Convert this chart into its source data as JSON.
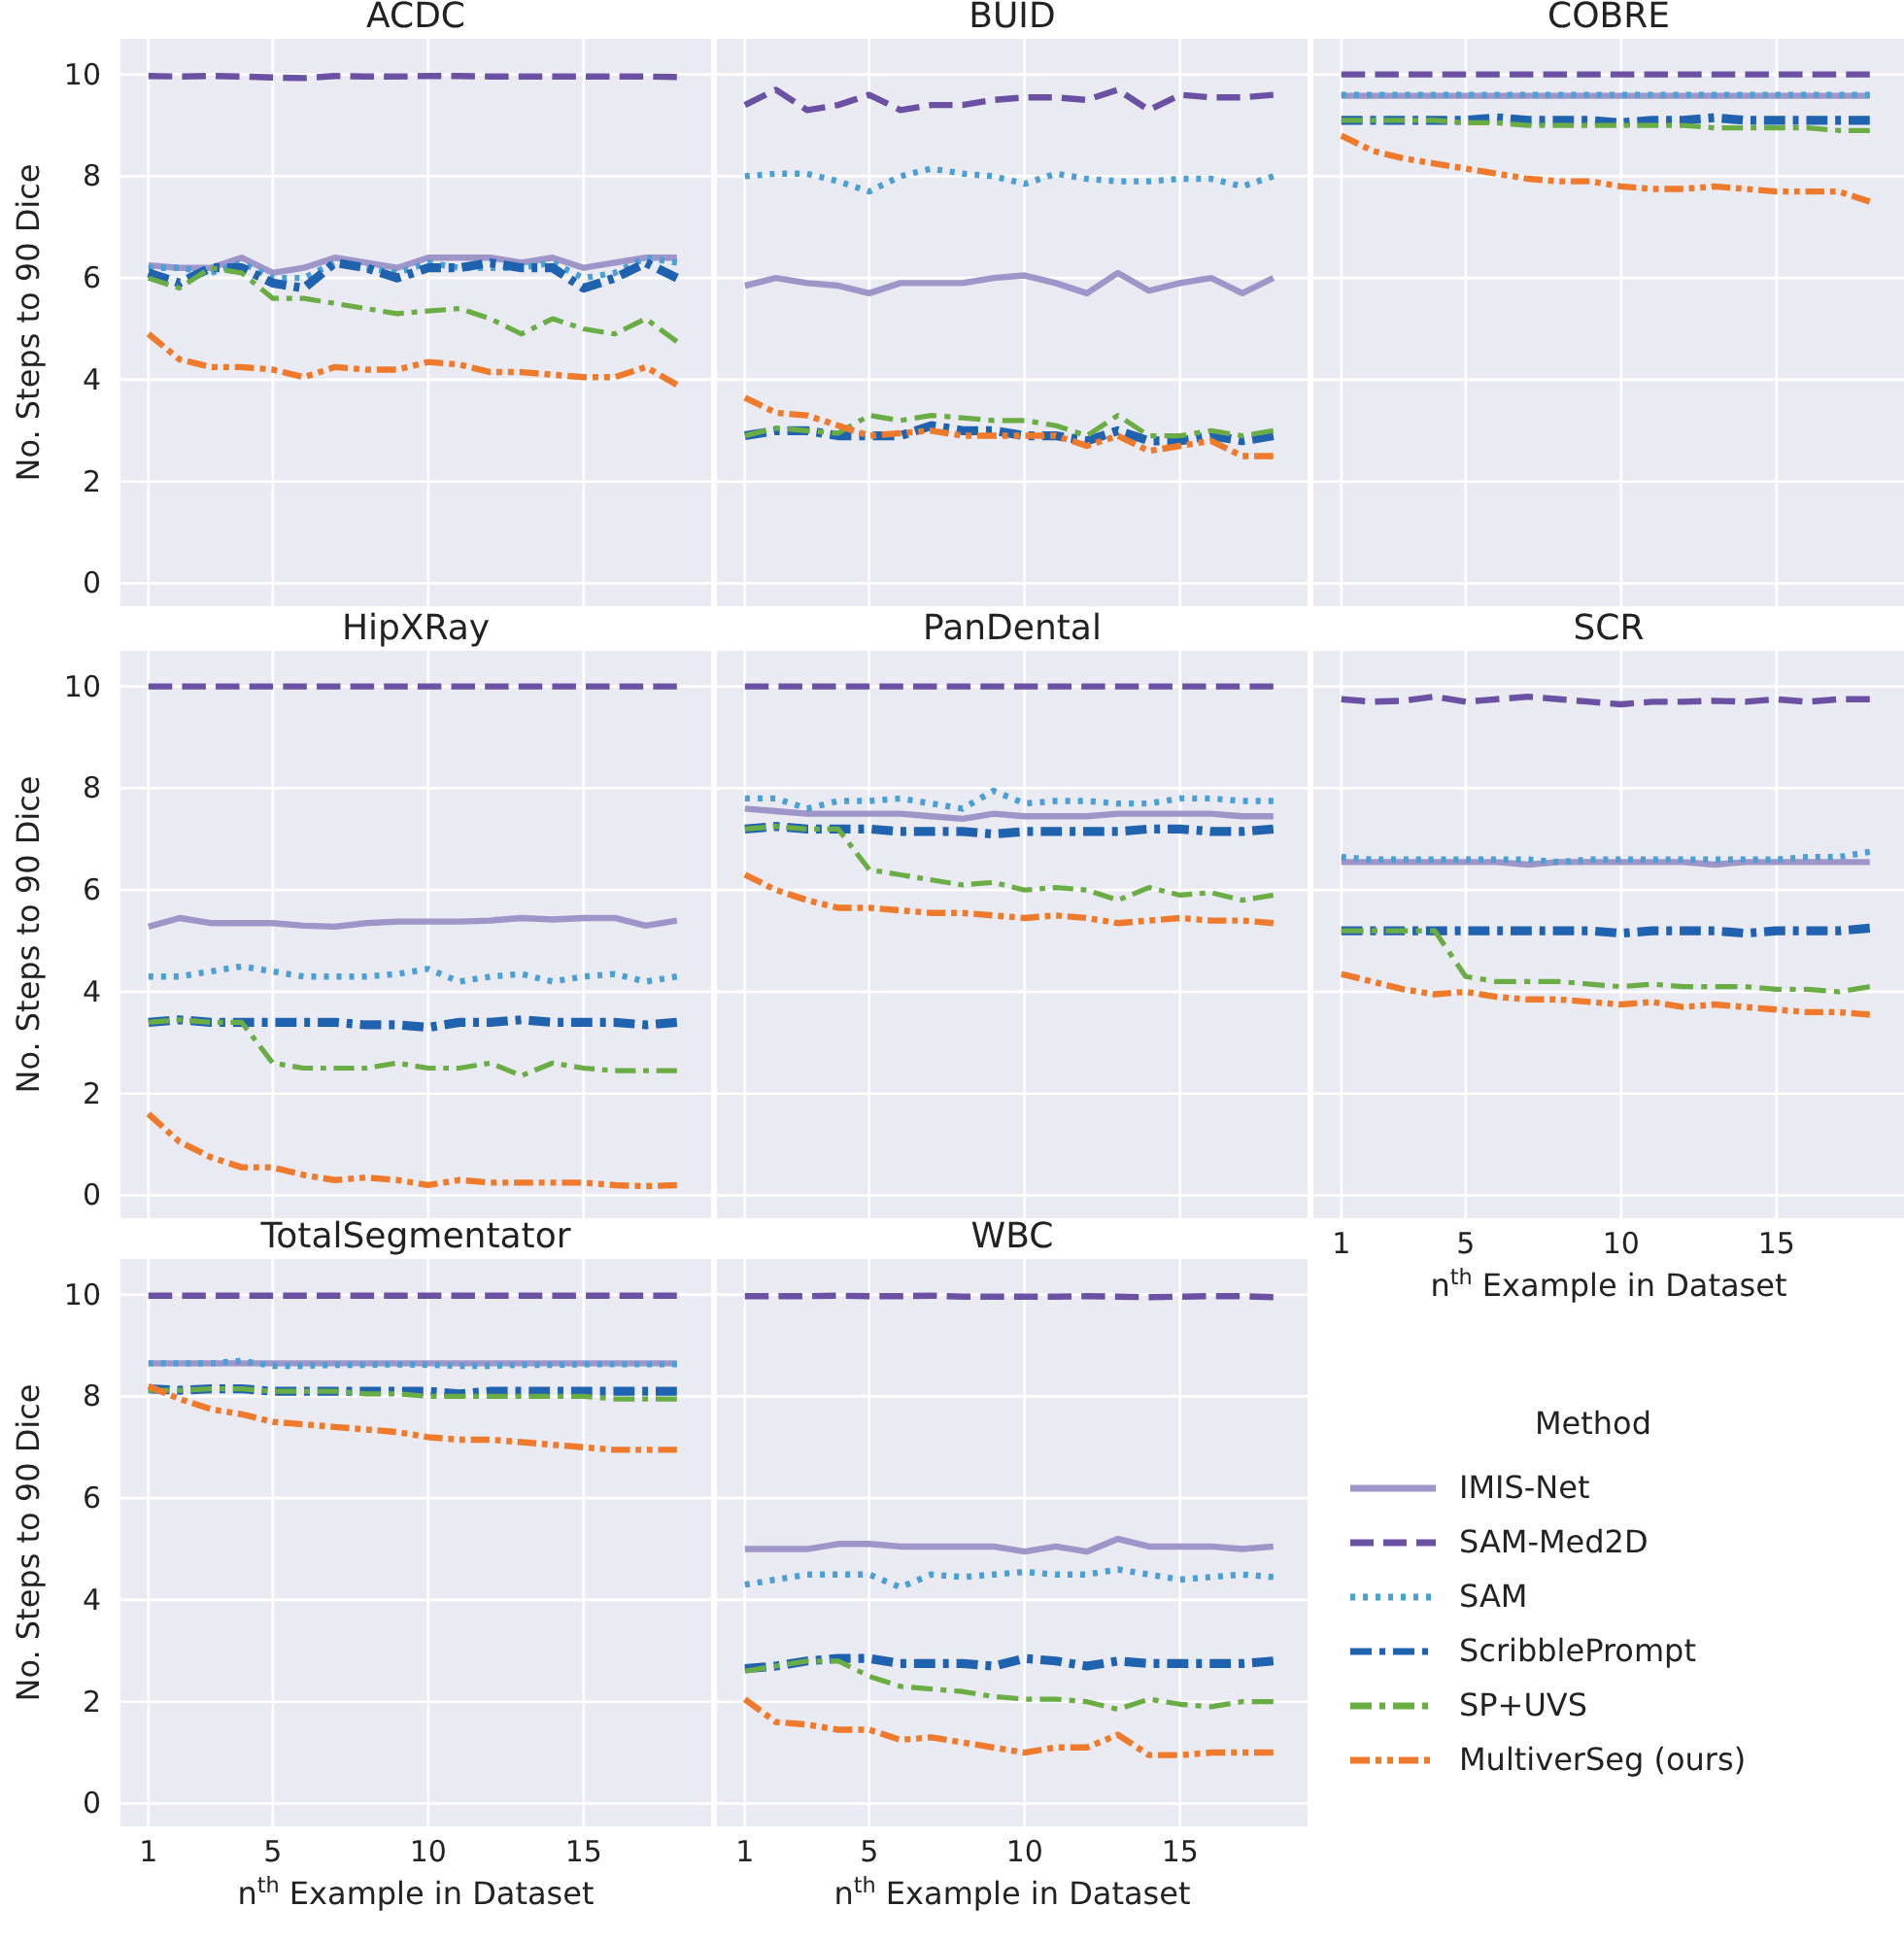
{
  "chart_data": [
    {
      "type": "line",
      "title": "ACDC",
      "ylabel": "No. Steps to 90 Dice",
      "x": [
        1,
        2,
        3,
        4,
        5,
        6,
        7,
        8,
        9,
        10,
        11,
        12,
        13,
        14,
        15,
        16,
        17,
        18
      ],
      "xlim": [
        0.1,
        19.1
      ],
      "xticks": [
        1,
        5,
        10,
        15
      ],
      "ylim": [
        -0.45,
        10.7
      ],
      "yticks": [
        0,
        2,
        4,
        6,
        8,
        10
      ],
      "grid": true,
      "tick_labels": "y",
      "legend": false,
      "series": [
        {
          "color": "#9e95c8",
          "line_style": "solid",
          "values": [
            6.25,
            6.2,
            6.2,
            6.4,
            6.1,
            6.2,
            6.4,
            6.3,
            6.2,
            6.4,
            6.4,
            6.4,
            6.3,
            6.4,
            6.2,
            6.3,
            6.4,
            6.4
          ]
        },
        {
          "color": "#6a51a3",
          "line_style": "dashed",
          "values": [
            9.97,
            9.96,
            9.97,
            9.96,
            9.94,
            9.93,
            9.97,
            9.96,
            9.96,
            9.97,
            9.97,
            9.96,
            9.96,
            9.96,
            9.96,
            9.96,
            9.96,
            9.95
          ]
        },
        {
          "color": "#4a9fd4",
          "line_style": "dotted",
          "values": [
            6.2,
            6.2,
            6.1,
            6.3,
            6.0,
            6.0,
            6.3,
            6.2,
            6.1,
            6.3,
            6.2,
            6.2,
            6.2,
            6.3,
            6.0,
            6.1,
            6.4,
            6.3
          ]
        },
        {
          "color": "#1f63b0",
          "line_style": "dashdot",
          "values": [
            6.1,
            5.9,
            6.2,
            6.2,
            5.9,
            5.8,
            6.3,
            6.2,
            6.0,
            6.2,
            6.2,
            6.3,
            6.2,
            6.2,
            5.8,
            6.0,
            6.3,
            6.0
          ]
        },
        {
          "color": "#6aad45",
          "line_style": "dashdot",
          "values": [
            6.0,
            5.8,
            6.2,
            6.1,
            5.6,
            5.6,
            5.5,
            5.4,
            5.3,
            5.35,
            5.4,
            5.2,
            4.9,
            5.2,
            5.0,
            4.9,
            5.2,
            4.75
          ]
        },
        {
          "color": "#f07a2c",
          "line_style": "dashdotdot",
          "values": [
            4.9,
            4.4,
            4.25,
            4.25,
            4.2,
            4.05,
            4.25,
            4.2,
            4.2,
            4.35,
            4.3,
            4.15,
            4.15,
            4.1,
            4.05,
            4.05,
            4.25,
            3.9
          ]
        }
      ]
    },
    {
      "type": "line",
      "title": "BUID",
      "x": [
        1,
        2,
        3,
        4,
        5,
        6,
        7,
        8,
        9,
        10,
        11,
        12,
        13,
        14,
        15,
        16,
        17,
        18
      ],
      "xlim": [
        0.1,
        19.1
      ],
      "xticks": [
        1,
        5,
        10,
        15
      ],
      "ylim": [
        -0.45,
        10.7
      ],
      "yticks": [
        0,
        2,
        4,
        6,
        8,
        10
      ],
      "grid": true,
      "tick_labels": false,
      "legend": false,
      "series": [
        {
          "color": "#9e95c8",
          "line_style": "solid",
          "values": [
            5.85,
            6.0,
            5.9,
            5.85,
            5.7,
            5.9,
            5.9,
            5.9,
            6.0,
            6.05,
            5.9,
            5.7,
            6.1,
            5.75,
            5.9,
            6.0,
            5.7,
            6.0
          ]
        },
        {
          "color": "#6a51a3",
          "line_style": "dashed",
          "values": [
            9.4,
            9.7,
            9.3,
            9.4,
            9.6,
            9.3,
            9.4,
            9.4,
            9.5,
            9.55,
            9.55,
            9.5,
            9.7,
            9.3,
            9.6,
            9.55,
            9.55,
            9.6
          ]
        },
        {
          "color": "#4a9fd4",
          "line_style": "dotted",
          "values": [
            8.0,
            8.05,
            8.05,
            7.9,
            7.7,
            8.0,
            8.15,
            8.05,
            8.0,
            7.85,
            8.05,
            7.95,
            7.9,
            7.9,
            7.95,
            7.95,
            7.8,
            8.0
          ]
        },
        {
          "color": "#1f63b0",
          "line_style": "dashdot",
          "values": [
            2.9,
            3.0,
            3.0,
            2.9,
            2.9,
            2.9,
            3.1,
            3.0,
            3.0,
            2.9,
            2.9,
            2.8,
            3.0,
            2.8,
            2.8,
            2.9,
            2.8,
            2.9
          ]
        },
        {
          "color": "#6aad45",
          "line_style": "dashdot",
          "values": [
            2.9,
            3.05,
            3.0,
            2.95,
            3.3,
            3.2,
            3.3,
            3.25,
            3.2,
            3.2,
            3.1,
            2.9,
            3.3,
            2.9,
            2.9,
            3.0,
            2.9,
            3.0
          ]
        },
        {
          "color": "#f07a2c",
          "line_style": "dashdotdot",
          "values": [
            3.65,
            3.35,
            3.3,
            3.1,
            2.9,
            2.95,
            3.0,
            2.9,
            2.9,
            2.9,
            2.9,
            2.7,
            2.9,
            2.6,
            2.7,
            2.8,
            2.5,
            2.5
          ]
        }
      ]
    },
    {
      "type": "line",
      "title": "COBRE",
      "x": [
        1,
        2,
        3,
        4,
        5,
        6,
        7,
        8,
        9,
        10,
        11,
        12,
        13,
        14,
        15,
        16,
        17,
        18
      ],
      "xlim": [
        0.1,
        19.1
      ],
      "xticks": [
        1,
        5,
        10,
        15
      ],
      "ylim": [
        -0.45,
        10.7
      ],
      "yticks": [
        0,
        2,
        4,
        6,
        8,
        10
      ],
      "grid": true,
      "tick_labels": false,
      "legend": false,
      "series": [
        {
          "color": "#9e95c8",
          "line_style": "solid",
          "values": [
            9.58,
            9.58,
            9.58,
            9.58,
            9.58,
            9.58,
            9.58,
            9.58,
            9.58,
            9.58,
            9.58,
            9.58,
            9.58,
            9.58,
            9.58,
            9.58,
            9.58,
            9.58
          ]
        },
        {
          "color": "#6a51a3",
          "line_style": "dashed",
          "values": [
            10.0,
            10.0,
            10.0,
            10.0,
            10.0,
            10.0,
            10.0,
            10.0,
            10.0,
            10.0,
            10.0,
            10.0,
            10.0,
            10.0,
            10.0,
            10.0,
            10.0,
            10.0
          ]
        },
        {
          "color": "#4a9fd4",
          "line_style": "dotted",
          "values": [
            9.6,
            9.6,
            9.6,
            9.6,
            9.6,
            9.6,
            9.6,
            9.6,
            9.6,
            9.6,
            9.6,
            9.6,
            9.6,
            9.6,
            9.6,
            9.6,
            9.6,
            9.6
          ]
        },
        {
          "color": "#1f63b0",
          "line_style": "dashdot",
          "values": [
            9.1,
            9.1,
            9.1,
            9.1,
            9.1,
            9.15,
            9.1,
            9.1,
            9.1,
            9.05,
            9.1,
            9.1,
            9.15,
            9.1,
            9.1,
            9.1,
            9.1,
            9.1
          ]
        },
        {
          "color": "#6aad45",
          "line_style": "dashdot",
          "values": [
            9.1,
            9.1,
            9.1,
            9.1,
            9.05,
            9.05,
            9.0,
            9.0,
            9.0,
            9.0,
            9.0,
            9.0,
            8.95,
            8.95,
            8.95,
            8.95,
            8.9,
            8.9
          ]
        },
        {
          "color": "#f07a2c",
          "line_style": "dashdotdot",
          "values": [
            8.8,
            8.5,
            8.35,
            8.25,
            8.15,
            8.05,
            7.95,
            7.9,
            7.9,
            7.8,
            7.75,
            7.75,
            7.8,
            7.75,
            7.7,
            7.7,
            7.7,
            7.5
          ]
        }
      ]
    },
    {
      "type": "line",
      "title": "HipXRay",
      "ylabel": "No. Steps to 90 Dice",
      "x": [
        1,
        2,
        3,
        4,
        5,
        6,
        7,
        8,
        9,
        10,
        11,
        12,
        13,
        14,
        15,
        16,
        17,
        18
      ],
      "xlim": [
        0.1,
        19.1
      ],
      "xticks": [
        1,
        5,
        10,
        15
      ],
      "ylim": [
        -0.45,
        10.7
      ],
      "yticks": [
        0,
        2,
        4,
        6,
        8,
        10
      ],
      "grid": true,
      "tick_labels": "y",
      "legend": false,
      "series": [
        {
          "color": "#9e95c8",
          "line_style": "solid",
          "values": [
            5.28,
            5.45,
            5.35,
            5.35,
            5.35,
            5.3,
            5.28,
            5.35,
            5.38,
            5.38,
            5.38,
            5.4,
            5.45,
            5.42,
            5.45,
            5.45,
            5.3,
            5.4
          ]
        },
        {
          "color": "#6a51a3",
          "line_style": "dashed",
          "values": [
            10.0,
            10.0,
            10.0,
            10.0,
            10.0,
            10.0,
            10.0,
            10.0,
            10.0,
            10.0,
            10.0,
            10.0,
            10.0,
            10.0,
            10.0,
            10.0,
            10.0,
            10.0
          ]
        },
        {
          "color": "#4a9fd4",
          "line_style": "dotted",
          "values": [
            4.3,
            4.3,
            4.4,
            4.5,
            4.4,
            4.3,
            4.3,
            4.3,
            4.35,
            4.45,
            4.2,
            4.3,
            4.35,
            4.2,
            4.3,
            4.35,
            4.2,
            4.3
          ]
        },
        {
          "color": "#1f63b0",
          "line_style": "dashdot",
          "values": [
            3.4,
            3.45,
            3.4,
            3.4,
            3.4,
            3.4,
            3.4,
            3.35,
            3.35,
            3.3,
            3.4,
            3.4,
            3.45,
            3.4,
            3.4,
            3.4,
            3.35,
            3.4
          ]
        },
        {
          "color": "#6aad45",
          "line_style": "dashdot",
          "values": [
            3.4,
            3.45,
            3.4,
            3.4,
            2.6,
            2.5,
            2.5,
            2.5,
            2.6,
            2.5,
            2.5,
            2.6,
            2.35,
            2.6,
            2.5,
            2.45,
            2.45,
            2.45
          ]
        },
        {
          "color": "#f07a2c",
          "line_style": "dashdotdot",
          "values": [
            1.6,
            1.05,
            0.75,
            0.55,
            0.55,
            0.4,
            0.3,
            0.35,
            0.3,
            0.2,
            0.3,
            0.25,
            0.25,
            0.25,
            0.25,
            0.2,
            0.18,
            0.2
          ]
        }
      ]
    },
    {
      "type": "line",
      "title": "PanDental",
      "x": [
        1,
        2,
        3,
        4,
        5,
        6,
        7,
        8,
        9,
        10,
        11,
        12,
        13,
        14,
        15,
        16,
        17,
        18
      ],
      "xlim": [
        0.1,
        19.1
      ],
      "xticks": [
        1,
        5,
        10,
        15
      ],
      "ylim": [
        -0.45,
        10.7
      ],
      "yticks": [
        0,
        2,
        4,
        6,
        8,
        10
      ],
      "grid": true,
      "tick_labels": false,
      "legend": false,
      "series": [
        {
          "color": "#9e95c8",
          "line_style": "solid",
          "values": [
            7.6,
            7.55,
            7.5,
            7.5,
            7.5,
            7.5,
            7.45,
            7.4,
            7.5,
            7.45,
            7.45,
            7.45,
            7.5,
            7.5,
            7.5,
            7.5,
            7.45,
            7.45
          ]
        },
        {
          "color": "#6a51a3",
          "line_style": "dashed",
          "values": [
            10.0,
            10.0,
            10.0,
            10.0,
            10.0,
            10.0,
            10.0,
            10.0,
            10.0,
            10.0,
            10.0,
            10.0,
            10.0,
            10.0,
            10.0,
            10.0,
            10.0,
            10.0
          ]
        },
        {
          "color": "#4a9fd4",
          "line_style": "dotted",
          "values": [
            7.8,
            7.8,
            7.6,
            7.75,
            7.75,
            7.8,
            7.7,
            7.6,
            7.95,
            7.7,
            7.75,
            7.75,
            7.7,
            7.7,
            7.8,
            7.8,
            7.75,
            7.75
          ]
        },
        {
          "color": "#1f63b0",
          "line_style": "dashdot",
          "values": [
            7.2,
            7.25,
            7.2,
            7.2,
            7.2,
            7.15,
            7.15,
            7.15,
            7.1,
            7.15,
            7.15,
            7.15,
            7.15,
            7.2,
            7.2,
            7.15,
            7.15,
            7.2
          ]
        },
        {
          "color": "#6aad45",
          "line_style": "dashdot",
          "values": [
            7.2,
            7.25,
            7.2,
            7.2,
            6.4,
            6.3,
            6.2,
            6.1,
            6.15,
            6.0,
            6.05,
            6.0,
            5.8,
            6.05,
            5.9,
            5.95,
            5.8,
            5.9
          ]
        },
        {
          "color": "#f07a2c",
          "line_style": "dashdotdot",
          "values": [
            6.3,
            6.0,
            5.8,
            5.65,
            5.65,
            5.6,
            5.55,
            5.55,
            5.5,
            5.45,
            5.5,
            5.45,
            5.35,
            5.4,
            5.45,
            5.4,
            5.4,
            5.35
          ]
        }
      ]
    },
    {
      "type": "line",
      "title": "SCR",
      "xlabel": "n$^{th}$ Example in Dataset",
      "x": [
        1,
        2,
        3,
        4,
        5,
        6,
        7,
        8,
        9,
        10,
        11,
        12,
        13,
        14,
        15,
        16,
        17,
        18
      ],
      "xlim": [
        0.1,
        19.1
      ],
      "xticks": [
        1,
        5,
        10,
        15
      ],
      "ylim": [
        -0.45,
        10.7
      ],
      "yticks": [
        0,
        2,
        4,
        6,
        8,
        10
      ],
      "grid": true,
      "tick_labels": "x",
      "legend": false,
      "series": [
        {
          "color": "#9e95c8",
          "line_style": "solid",
          "values": [
            6.55,
            6.55,
            6.55,
            6.55,
            6.55,
            6.55,
            6.5,
            6.55,
            6.55,
            6.55,
            6.55,
            6.55,
            6.5,
            6.55,
            6.55,
            6.55,
            6.55,
            6.55
          ]
        },
        {
          "color": "#6a51a3",
          "line_style": "dashed",
          "values": [
            9.75,
            9.7,
            9.72,
            9.8,
            9.7,
            9.75,
            9.8,
            9.75,
            9.7,
            9.65,
            9.7,
            9.7,
            9.72,
            9.7,
            9.75,
            9.7,
            9.75,
            9.75
          ]
        },
        {
          "color": "#4a9fd4",
          "line_style": "dotted",
          "values": [
            6.65,
            6.6,
            6.6,
            6.6,
            6.6,
            6.6,
            6.6,
            6.55,
            6.6,
            6.6,
            6.6,
            6.6,
            6.6,
            6.6,
            6.6,
            6.65,
            6.65,
            6.75
          ]
        },
        {
          "color": "#1f63b0",
          "line_style": "dashdot",
          "values": [
            5.2,
            5.2,
            5.2,
            5.2,
            5.2,
            5.2,
            5.2,
            5.2,
            5.2,
            5.15,
            5.2,
            5.2,
            5.2,
            5.15,
            5.2,
            5.2,
            5.2,
            5.25
          ]
        },
        {
          "color": "#6aad45",
          "line_style": "dashdot",
          "values": [
            5.2,
            5.2,
            5.2,
            5.2,
            4.3,
            4.2,
            4.2,
            4.2,
            4.15,
            4.1,
            4.15,
            4.1,
            4.1,
            4.1,
            4.05,
            4.05,
            4.0,
            4.1
          ]
        },
        {
          "color": "#f07a2c",
          "line_style": "dashdotdot",
          "values": [
            4.35,
            4.2,
            4.05,
            3.95,
            4.0,
            3.9,
            3.85,
            3.85,
            3.8,
            3.75,
            3.8,
            3.7,
            3.75,
            3.7,
            3.65,
            3.6,
            3.6,
            3.55
          ]
        }
      ]
    },
    {
      "type": "line",
      "title": "TotalSegmentator",
      "xlabel": "n$^{th}$ Example in Dataset",
      "ylabel": "No. Steps to 90 Dice",
      "x": [
        1,
        2,
        3,
        4,
        5,
        6,
        7,
        8,
        9,
        10,
        11,
        12,
        13,
        14,
        15,
        16,
        17,
        18
      ],
      "xlim": [
        0.1,
        19.1
      ],
      "xticks": [
        1,
        5,
        10,
        15
      ],
      "ylim": [
        -0.45,
        10.7
      ],
      "yticks": [
        0,
        2,
        4,
        6,
        8,
        10
      ],
      "grid": true,
      "legend": false,
      "series": [
        {
          "color": "#9e95c8",
          "line_style": "solid",
          "values": [
            8.65,
            8.65,
            8.65,
            8.65,
            8.65,
            8.65,
            8.65,
            8.65,
            8.65,
            8.65,
            8.65,
            8.65,
            8.65,
            8.65,
            8.65,
            8.65,
            8.65,
            8.65
          ]
        },
        {
          "color": "#6a51a3",
          "line_style": "dashed",
          "values": [
            9.98,
            9.98,
            9.98,
            9.98,
            9.98,
            9.98,
            9.98,
            9.98,
            9.98,
            9.98,
            9.98,
            9.98,
            9.98,
            9.98,
            9.98,
            9.98,
            9.98,
            9.98
          ]
        },
        {
          "color": "#4a9fd4",
          "line_style": "dotted",
          "values": [
            8.65,
            8.65,
            8.65,
            8.7,
            8.6,
            8.6,
            8.62,
            8.62,
            8.63,
            8.62,
            8.6,
            8.6,
            8.62,
            8.62,
            8.63,
            8.63,
            8.63,
            8.63
          ]
        },
        {
          "color": "#1f63b0",
          "line_style": "dashdot",
          "values": [
            8.15,
            8.12,
            8.15,
            8.15,
            8.1,
            8.1,
            8.1,
            8.1,
            8.1,
            8.1,
            8.05,
            8.1,
            8.1,
            8.1,
            8.1,
            8.1,
            8.1,
            8.1
          ]
        },
        {
          "color": "#6aad45",
          "line_style": "dashdot",
          "values": [
            8.12,
            8.12,
            8.15,
            8.15,
            8.1,
            8.1,
            8.1,
            8.05,
            8.05,
            8.0,
            8.0,
            8.0,
            8.0,
            8.0,
            8.0,
            7.95,
            7.95,
            7.95
          ]
        },
        {
          "color": "#f07a2c",
          "line_style": "dashdotdot",
          "values": [
            8.2,
            7.95,
            7.75,
            7.65,
            7.5,
            7.45,
            7.4,
            7.35,
            7.3,
            7.2,
            7.15,
            7.15,
            7.1,
            7.05,
            7.0,
            6.95,
            6.95,
            6.95
          ]
        }
      ]
    },
    {
      "type": "line",
      "title": "WBC",
      "xlabel": "n$^{th}$ Example in Dataset",
      "legend_title": "Method",
      "x": [
        1,
        2,
        3,
        4,
        5,
        6,
        7,
        8,
        9,
        10,
        11,
        12,
        13,
        14,
        15,
        16,
        17,
        18
      ],
      "xlim": [
        0.1,
        19.1
      ],
      "xticks": [
        1,
        5,
        10,
        15
      ],
      "ylim": [
        -0.45,
        10.7
      ],
      "yticks": [
        0,
        2,
        4,
        6,
        8,
        10
      ],
      "grid": true,
      "tick_labels": "x",
      "legend": "right",
      "series": [
        {
          "name": "IMIS-Net",
          "color": "#9e95c8",
          "line_style": "solid",
          "values": [
            5.0,
            5.0,
            5.0,
            5.1,
            5.1,
            5.05,
            5.05,
            5.05,
            5.05,
            4.95,
            5.05,
            4.95,
            5.2,
            5.05,
            5.05,
            5.05,
            5.0,
            5.05
          ]
        },
        {
          "name": "SAM-Med2D",
          "color": "#6a51a3",
          "line_style": "dashed",
          "values": [
            9.97,
            9.97,
            9.97,
            9.98,
            9.97,
            9.97,
            9.98,
            9.96,
            9.96,
            9.96,
            9.96,
            9.97,
            9.96,
            9.95,
            9.96,
            9.97,
            9.97,
            9.95
          ]
        },
        {
          "name": "SAM",
          "color": "#4a9fd4",
          "line_style": "dotted",
          "values": [
            4.3,
            4.4,
            4.5,
            4.5,
            4.5,
            4.25,
            4.5,
            4.45,
            4.5,
            4.55,
            4.5,
            4.5,
            4.6,
            4.5,
            4.4,
            4.45,
            4.5,
            4.45
          ]
        },
        {
          "name": "ScribblePrompt",
          "color": "#1f63b0",
          "line_style": "dashdot",
          "values": [
            2.65,
            2.7,
            2.8,
            2.85,
            2.85,
            2.75,
            2.75,
            2.75,
            2.7,
            2.85,
            2.8,
            2.7,
            2.8,
            2.75,
            2.75,
            2.75,
            2.75,
            2.8
          ]
        },
        {
          "name": "SP+UVS",
          "color": "#6aad45",
          "line_style": "dashdot",
          "values": [
            2.6,
            2.7,
            2.8,
            2.8,
            2.5,
            2.3,
            2.25,
            2.2,
            2.1,
            2.05,
            2.05,
            2.0,
            1.85,
            2.05,
            1.95,
            1.9,
            2.0,
            2.0
          ]
        },
        {
          "name": "MultiverSeg (ours)",
          "color": "#f07a2c",
          "line_style": "dashdotdot",
          "values": [
            2.05,
            1.6,
            1.55,
            1.45,
            1.45,
            1.25,
            1.3,
            1.2,
            1.1,
            1.0,
            1.1,
            1.1,
            1.35,
            0.95,
            0.95,
            1.0,
            1.0,
            1.0
          ]
        }
      ]
    }
  ]
}
